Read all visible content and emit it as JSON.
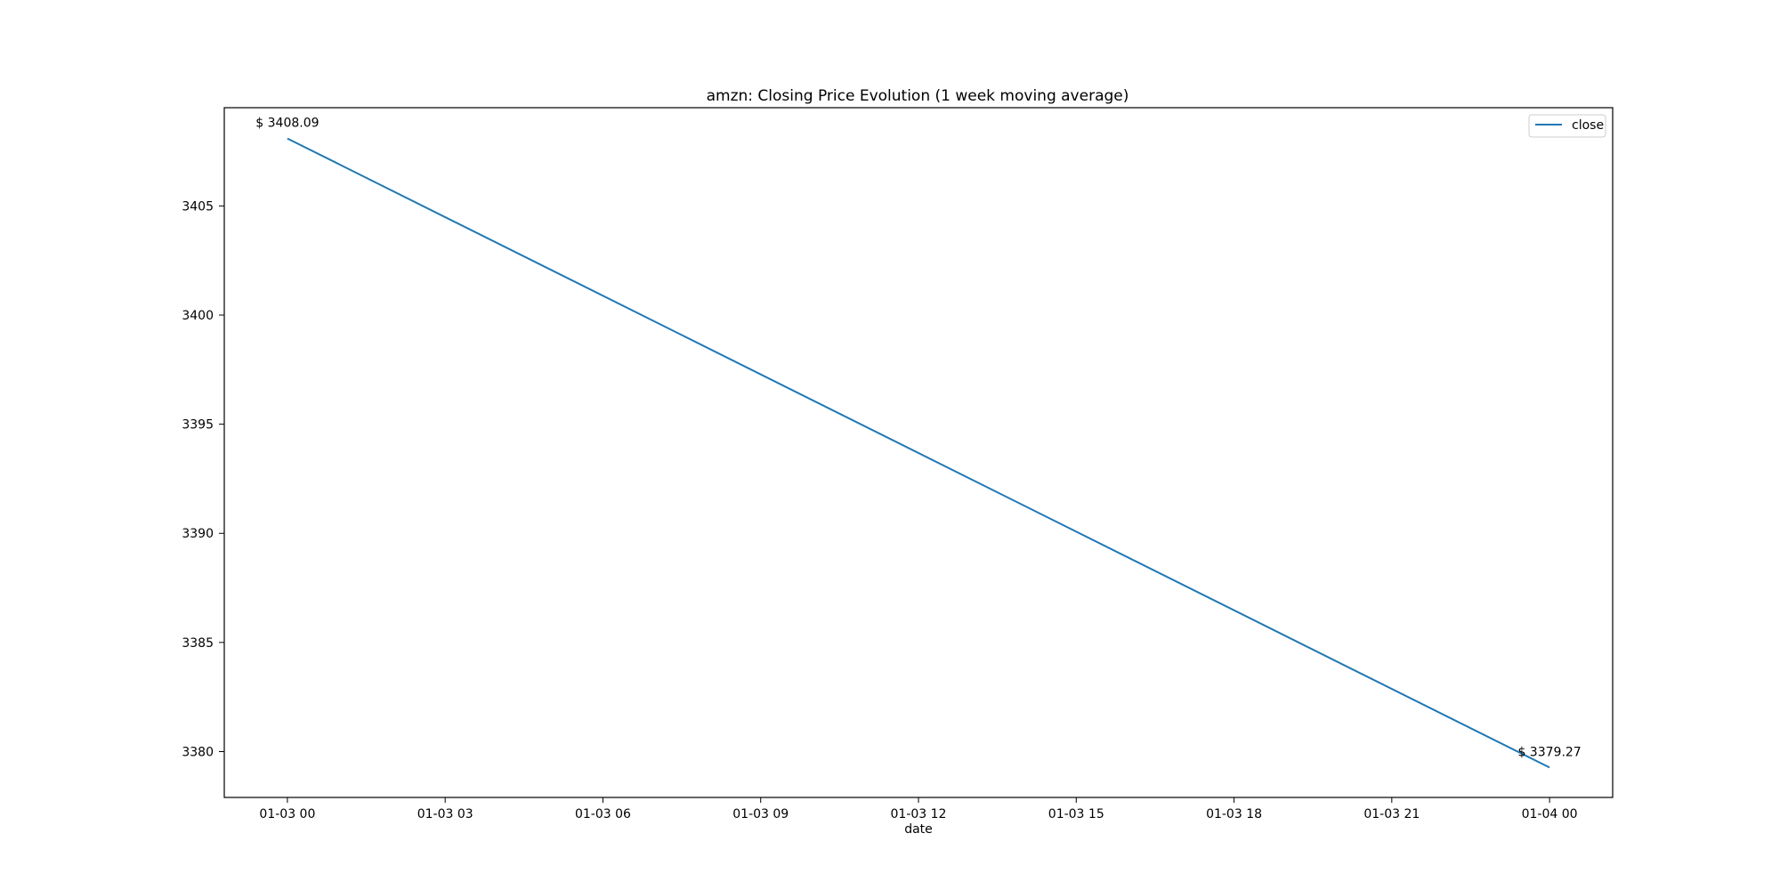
{
  "chart_data": {
    "type": "line",
    "title": "amzn: Closing Price Evolution (1 week moving average)",
    "xlabel": "date",
    "ylabel": "",
    "x_ticks": [
      "01-03 00",
      "01-03 03",
      "01-03 06",
      "01-03 09",
      "01-03 12",
      "01-03 15",
      "01-03 18",
      "01-03 21",
      "01-04 00"
    ],
    "x_tick_hours": [
      0,
      3,
      6,
      9,
      12,
      15,
      18,
      21,
      24
    ],
    "xlim": [
      -1.2,
      25.2
    ],
    "y_ticks": [
      3380,
      3385,
      3390,
      3395,
      3400,
      3405
    ],
    "ylim": [
      3377.9,
      3409.5
    ],
    "grid": false,
    "legend_position": "top-right",
    "series": [
      {
        "name": "close",
        "color": "#1f77b4",
        "points": [
          {
            "x": "01-03 00",
            "hour": 0,
            "y": 3408.09
          },
          {
            "x": "01-04 00",
            "hour": 24,
            "y": 3379.27
          }
        ]
      }
    ],
    "annotations": [
      {
        "text": "$ 3408.09",
        "hour": 0,
        "y": 3408.09,
        "anchor": "above"
      },
      {
        "text": "$ 3379.27",
        "hour": 24,
        "y": 3379.27,
        "anchor": "above"
      }
    ]
  }
}
